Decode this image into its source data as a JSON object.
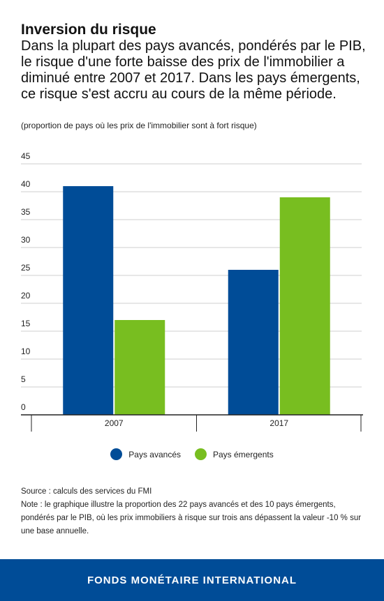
{
  "header": {
    "title": "Inversion du risque",
    "subtitle": "Dans la plupart des pays avancés, pondérés par le PIB, le risque d'une forte baisse des prix de l'immobilier a diminué entre 2007 et 2017. Dans les pays émergents, ce risque s'est accru au cours de la même période.",
    "units": "(proportion de pays où les prix de l'immobilier sont à fort risque)"
  },
  "chart_data": {
    "type": "bar",
    "categories": [
      "2007",
      "2017"
    ],
    "series": [
      {
        "name": "Pays avancés",
        "values": [
          41,
          26
        ],
        "color": "#004C97"
      },
      {
        "name": "Pays émergents",
        "values": [
          17,
          39
        ],
        "color": "#78BE20"
      }
    ],
    "ylim": [
      0,
      45
    ],
    "yticks": [
      0,
      5,
      10,
      15,
      20,
      25,
      30,
      35,
      40,
      45
    ],
    "grid": true,
    "legend_position": "bottom"
  },
  "notes": {
    "source": "Source : calculs des services du FMI",
    "note": "Note : le graphique illustre la proportion des 22 pays avancés et des 10 pays émergents, pondérés par le PIB, où les prix immobiliers à risque sur trois ans dépassent la valeur -10 % sur une base annuelle."
  },
  "footer": {
    "text": "FONDS MONÉTAIRE INTERNATIONAL"
  }
}
